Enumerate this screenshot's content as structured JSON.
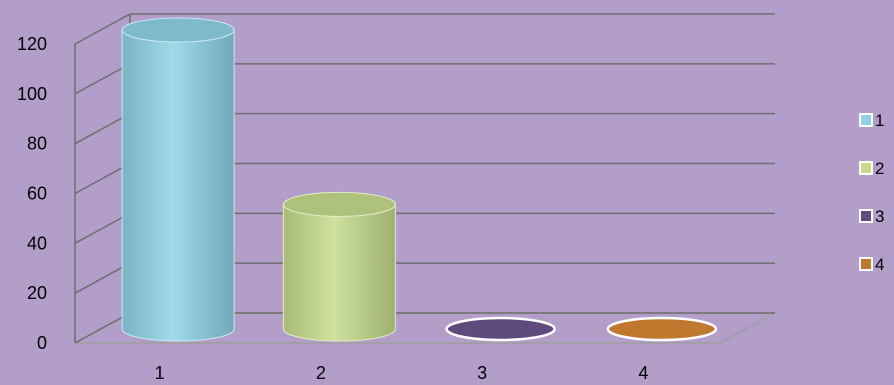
{
  "colors": {
    "background": "#b29ec9",
    "grid": "#6e6e6e",
    "plane": "#9e9e9e"
  },
  "chart_data": {
    "type": "bar",
    "style": "3d-cylinder",
    "title": "",
    "xlabel": "",
    "ylabel": "",
    "categories": [
      "1",
      "2",
      "3",
      "4"
    ],
    "series": [
      {
        "name": "1",
        "category": "1",
        "value": 120,
        "color": "#8fd3e8"
      },
      {
        "name": "2",
        "category": "2",
        "value": 50,
        "color": "#c6dc8c"
      },
      {
        "name": "3",
        "category": "3",
        "value": 0,
        "color": "#5f4a7e"
      },
      {
        "name": "4",
        "category": "4",
        "value": 0,
        "color": "#c0782e"
      }
    ],
    "ylim": [
      0,
      120
    ],
    "yticks": [
      0,
      20,
      40,
      60,
      80,
      100,
      120
    ],
    "grid": true,
    "legend": "right"
  }
}
